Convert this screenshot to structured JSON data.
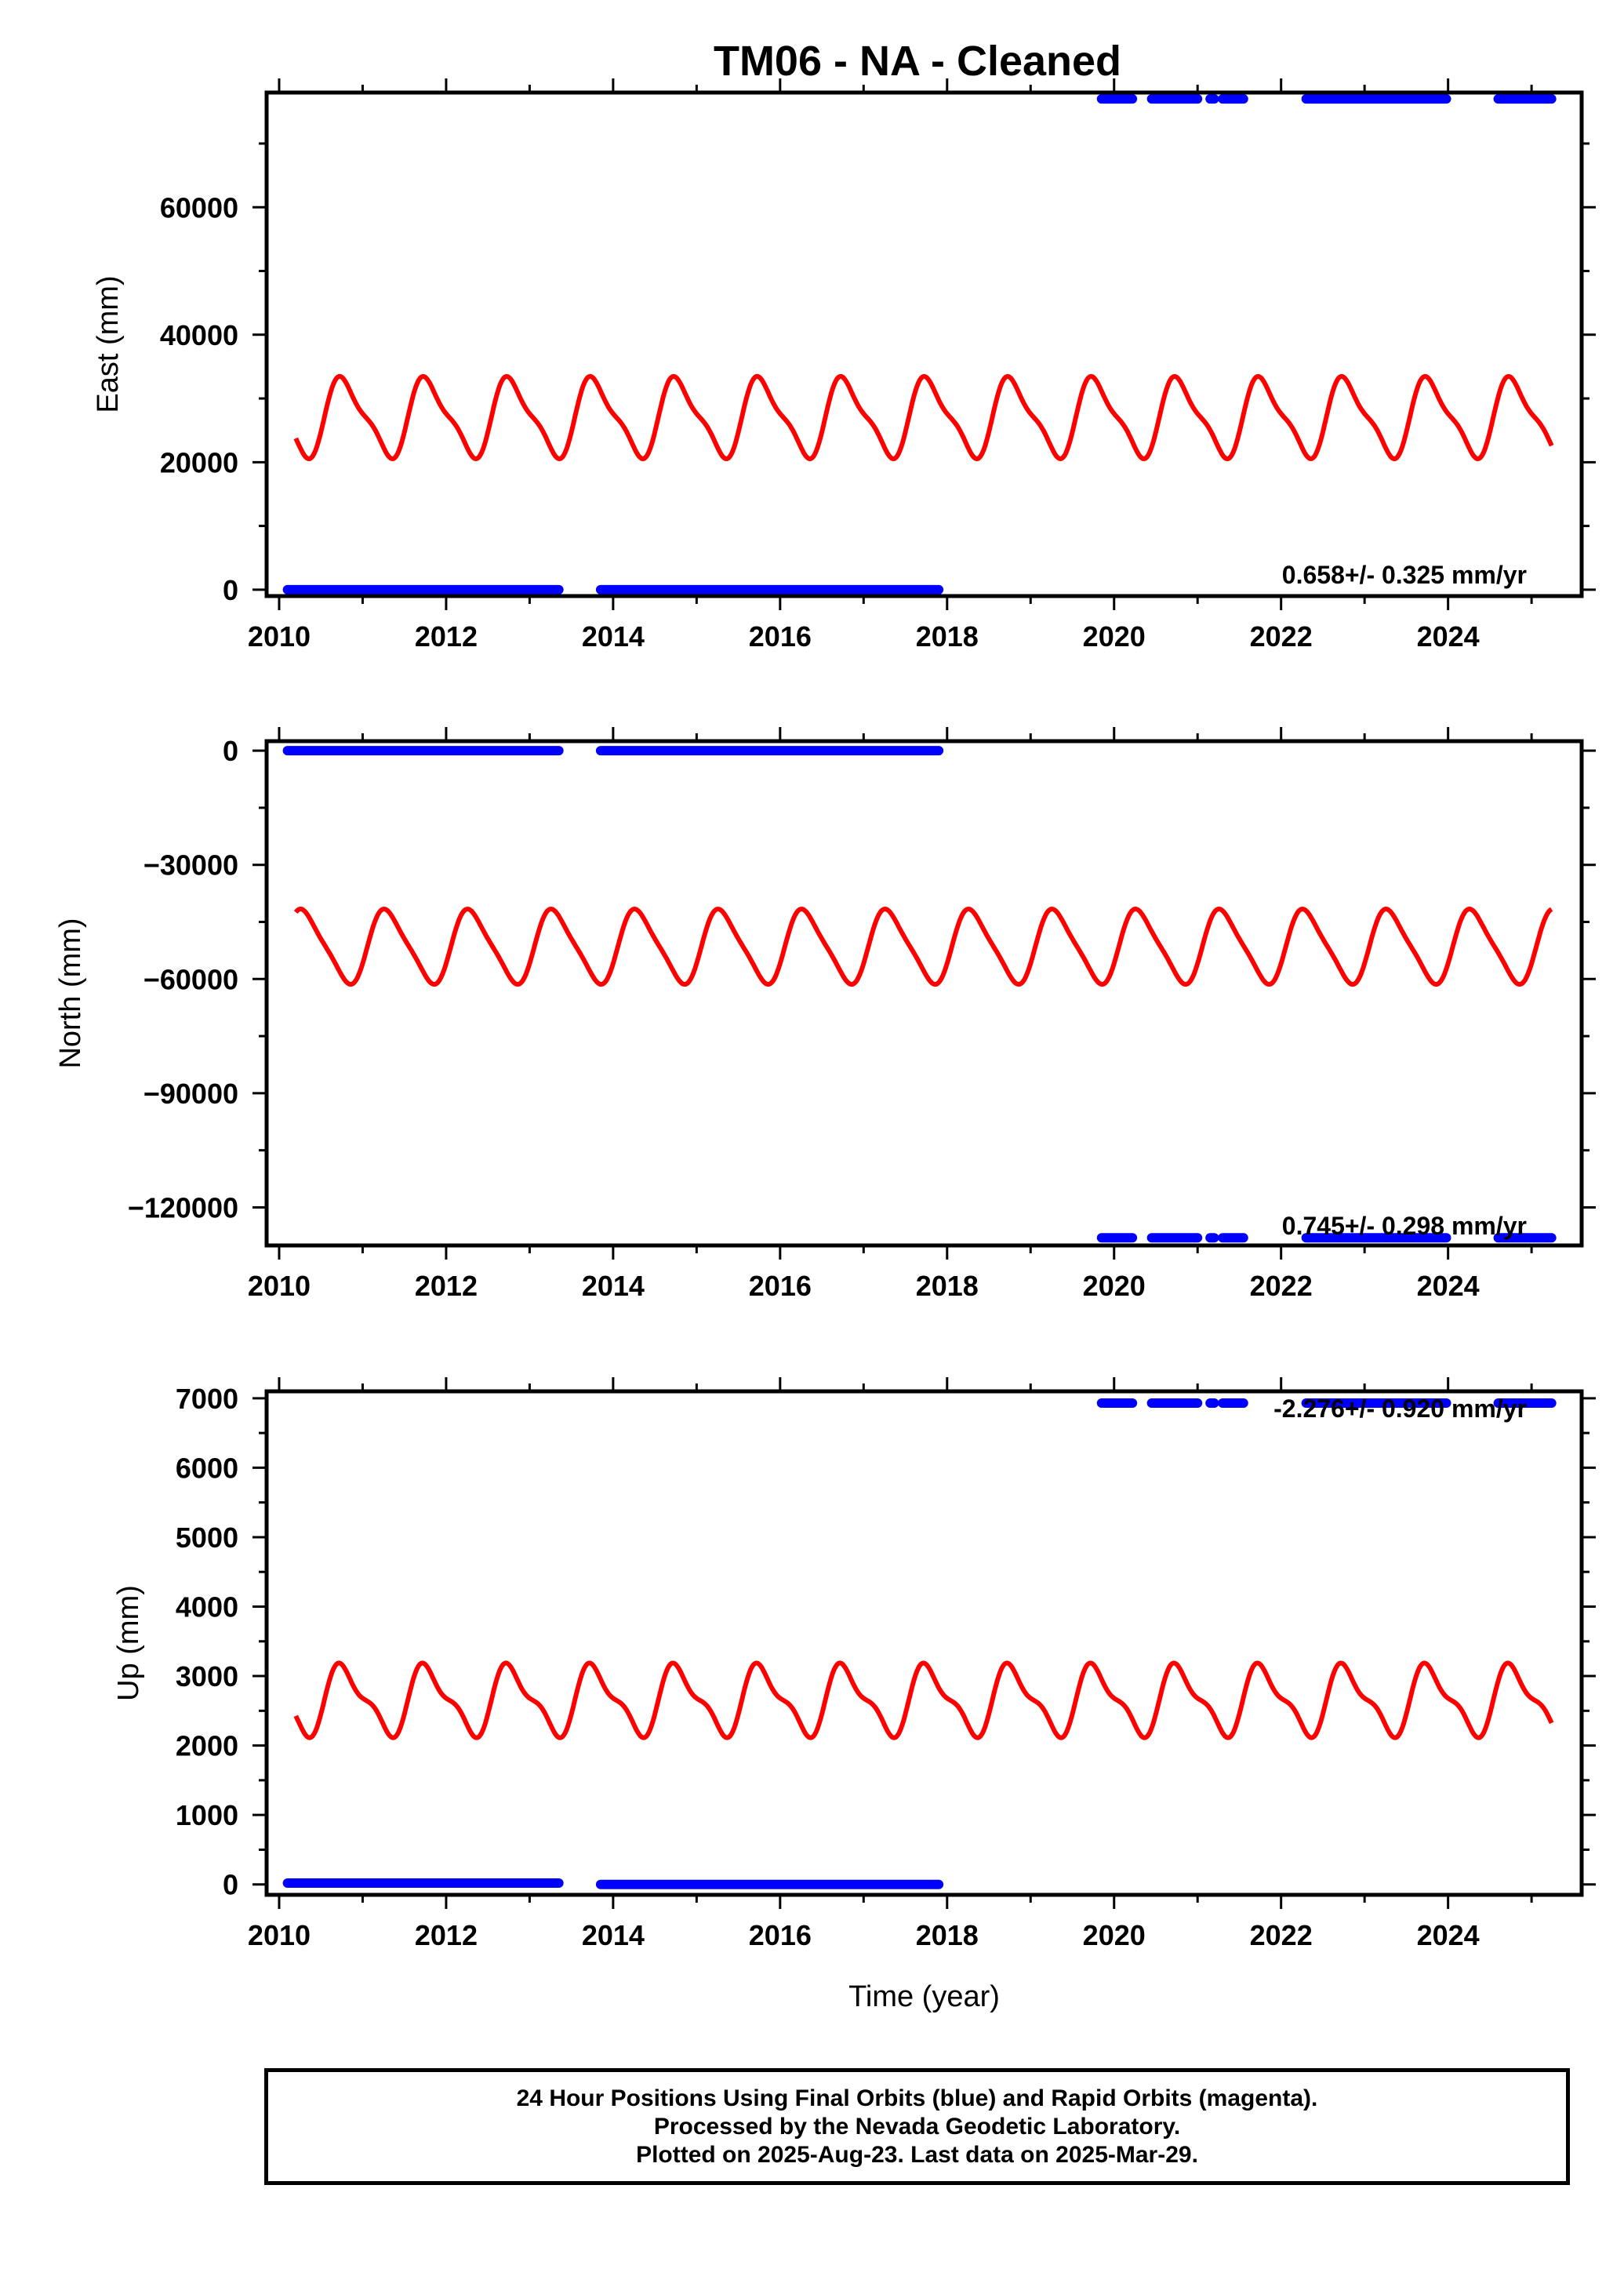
{
  "figure_title": "TM06  - NA - Cleaned",
  "colors": {
    "final_orbits": "#0000ff",
    "model": "#ff0000",
    "frame": "#000000"
  },
  "chart_data": [
    {
      "type": "scatter",
      "panel": "east",
      "ylabel": "East (mm)",
      "xlabel": "",
      "xlim": [
        2009.85,
        2025.6
      ],
      "ylim": [
        -1000,
        78000
      ],
      "xticks": [
        2010,
        2012,
        2014,
        2016,
        2018,
        2020,
        2022,
        2024
      ],
      "xtick_labels": [
        "2010",
        "2012",
        "2014",
        "2016",
        "2018",
        "2020",
        "2022",
        "2024"
      ],
      "yticks": [
        0,
        20000,
        40000,
        60000
      ],
      "ytick_labels": [
        "0",
        "20000",
        "40000",
        "60000"
      ],
      "rate_text": "0.658+/- 0.325 mm/yr",
      "series": [
        {
          "kind": "points",
          "segments": [
            {
              "x": [
                2010.1,
                2013.35
              ],
              "y": 0
            },
            {
              "x": [
                2013.85,
                2017.9
              ],
              "y": 0
            },
            {
              "x": [
                2019.85,
                2020.22
              ],
              "y": 77000
            },
            {
              "x": [
                2020.45,
                2021.0
              ],
              "y": 77000
            },
            {
              "x": [
                2021.15,
                2021.2
              ],
              "y": 77000
            },
            {
              "x": [
                2021.3,
                2021.55
              ],
              "y": 77000
            },
            {
              "x": [
                2022.3,
                2023.98
              ],
              "y": 77000
            },
            {
              "x": [
                2024.6,
                2025.24
              ],
              "y": 77000
            }
          ]
        },
        {
          "kind": "seasonal_model",
          "x_start": 2010.2,
          "x_end": 2025.24,
          "mean": 27000,
          "amp1": -5700,
          "amp2": 1700,
          "phase": 1.0
        }
      ]
    },
    {
      "type": "scatter",
      "panel": "north",
      "ylabel": "North (mm)",
      "xlabel": "",
      "xlim": [
        2009.85,
        2025.6
      ],
      "ylim": [
        -130000,
        2500
      ],
      "xticks": [
        2010,
        2012,
        2014,
        2016,
        2018,
        2020,
        2022,
        2024
      ],
      "xtick_labels": [
        "2010",
        "2012",
        "2014",
        "2016",
        "2018",
        "2020",
        "2022",
        "2024"
      ],
      "yticks": [
        0,
        -30000,
        -60000,
        -90000,
        -120000
      ],
      "ytick_labels": [
        "0",
        "−30000",
        "−60000",
        "−90000",
        "−120000"
      ],
      "rate_text": "0.745+/- 0.298 mm/yr",
      "series": [
        {
          "kind": "points",
          "segments": [
            {
              "x": [
                2010.1,
                2013.35
              ],
              "y": 0
            },
            {
              "x": [
                2013.85,
                2017.9
              ],
              "y": 0
            },
            {
              "x": [
                2019.85,
                2020.22
              ],
              "y": -128000
            },
            {
              "x": [
                2020.45,
                2021.0
              ],
              "y": -128000
            },
            {
              "x": [
                2021.15,
                2021.2
              ],
              "y": -128000
            },
            {
              "x": [
                2021.3,
                2021.55
              ],
              "y": -128000
            },
            {
              "x": [
                2022.3,
                2023.98
              ],
              "y": -128000
            },
            {
              "x": [
                2024.6,
                2025.24
              ],
              "y": -128000
            }
          ]
        },
        {
          "kind": "seasonal_model",
          "x_start": 2010.2,
          "x_end": 2025.24,
          "mean": -51500,
          "amp1": 9300,
          "amp2": 1800,
          "phase": 0.9
        }
      ]
    },
    {
      "type": "scatter",
      "panel": "up",
      "ylabel": "Up (mm)",
      "xlabel": "Time (year)",
      "xlim": [
        2009.85,
        2025.6
      ],
      "ylim": [
        -150,
        7100
      ],
      "xticks": [
        2010,
        2012,
        2014,
        2016,
        2018,
        2020,
        2022,
        2024
      ],
      "xtick_labels": [
        "2010",
        "2012",
        "2014",
        "2016",
        "2018",
        "2020",
        "2022",
        "2024"
      ],
      "yticks": [
        0,
        1000,
        2000,
        3000,
        4000,
        5000,
        6000,
        7000
      ],
      "ytick_labels": [
        "0",
        "1000",
        "2000",
        "3000",
        "4000",
        "5000",
        "6000",
        "7000"
      ],
      "rate_text": "-2.276+/- 0.920 mm/yr",
      "series": [
        {
          "kind": "points",
          "segments": [
            {
              "x": [
                2010.1,
                2013.35
              ],
              "y": 20
            },
            {
              "x": [
                2013.85,
                2017.9
              ],
              "y": 0
            },
            {
              "x": [
                2019.85,
                2020.22
              ],
              "y": 6930
            },
            {
              "x": [
                2020.45,
                2021.0
              ],
              "y": 6930
            },
            {
              "x": [
                2021.15,
                2021.2
              ],
              "y": 6930
            },
            {
              "x": [
                2021.3,
                2021.55
              ],
              "y": 6930
            },
            {
              "x": [
                2022.3,
                2023.98
              ],
              "y": 6930
            },
            {
              "x": [
                2024.6,
                2025.24
              ],
              "y": 6930
            }
          ]
        },
        {
          "kind": "seasonal_model",
          "x_start": 2010.2,
          "x_end": 2025.24,
          "mean": 2650,
          "amp1": -450,
          "amp2": 170,
          "phase": 1.0
        }
      ]
    }
  ],
  "footer": {
    "line1": "24 Hour Positions Using Final Orbits (blue) and Rapid Orbits (magenta).",
    "line2": "Processed by the Nevada Geodetic Laboratory.",
    "line3": "Plotted on 2025-Aug-23. Last data on 2025-Mar-29."
  }
}
